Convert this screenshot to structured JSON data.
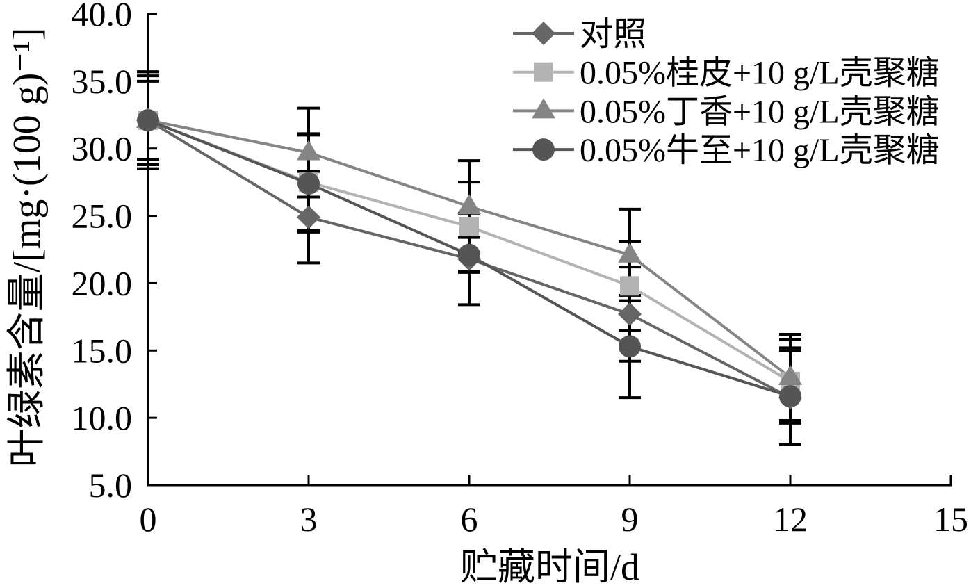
{
  "chart_data": {
    "type": "line",
    "xlabel": "贮藏时间/d",
    "ylabel": "叶绿素含量/[mg·(100 g)⁻¹]",
    "x": [
      0,
      3,
      6,
      9,
      12
    ],
    "xlim": [
      0,
      15
    ],
    "ylim": [
      5.0,
      40.0
    ],
    "xticks": [
      "0",
      "3",
      "6",
      "9",
      "12",
      "15"
    ],
    "yticks": [
      "5.0",
      "10.0",
      "15.0",
      "20.0",
      "25.0",
      "30.0",
      "35.0",
      "40.0"
    ],
    "grid": false,
    "legend_position": "top-right",
    "series": [
      {
        "name": "对照",
        "marker": "diamond",
        "color": "#666666",
        "values": [
          32.1,
          24.9,
          21.8,
          17.7,
          11.5
        ],
        "errors": [
          3.6,
          3.4,
          3.4,
          3.5,
          3.5
        ]
      },
      {
        "name": "0.05%桂皮+10 g/L壳聚糖",
        "marker": "square",
        "color": "#b3b3b3",
        "values": [
          32.1,
          27.5,
          24.2,
          19.8,
          12.7
        ],
        "errors": [
          3.3,
          3.6,
          3.3,
          3.3,
          3.1
        ]
      },
      {
        "name": "0.05%丁香+10 g/L壳聚糖",
        "marker": "triangle",
        "color": "#858585",
        "values": [
          32.1,
          29.7,
          25.7,
          22.1,
          13.0
        ],
        "errors": [
          2.9,
          3.3,
          3.4,
          3.4,
          3.2
        ]
      },
      {
        "name": "0.05%牛至+10 g/L壳聚糖",
        "marker": "circle",
        "color": "#555555",
        "values": [
          32.1,
          27.4,
          22.1,
          15.3,
          11.6
        ],
        "errors": [
          3.6,
          3.6,
          1.3,
          3.8,
          3.6
        ]
      }
    ]
  }
}
